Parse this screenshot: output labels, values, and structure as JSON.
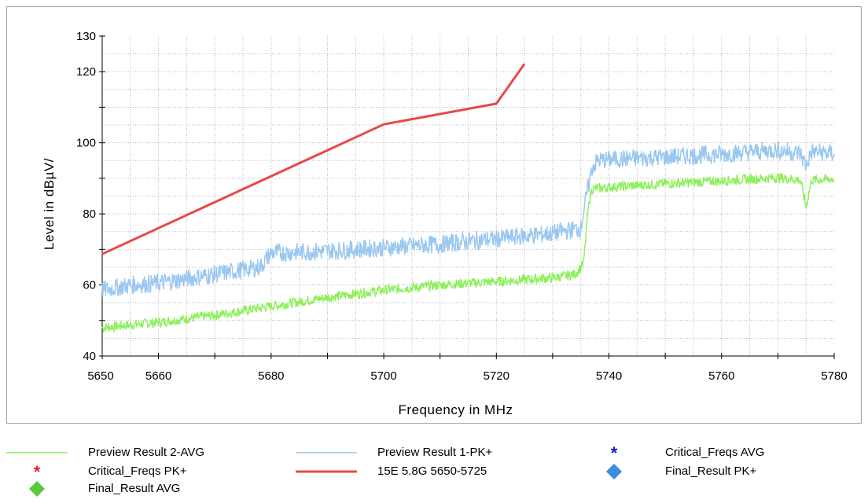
{
  "chart_data": {
    "type": "line",
    "xlabel": "Frequency in MHz",
    "ylabel": "Level in dBµV/",
    "xlim": [
      5650,
      5780
    ],
    "ylim": [
      40,
      130
    ],
    "x_ticks": [
      "5650",
      "5660",
      "5680",
      "5700",
      "5720",
      "5740",
      "5760",
      "5780"
    ],
    "y_ticks": [
      "40",
      "60",
      "80",
      "100",
      "120",
      "130"
    ],
    "grid": true,
    "series": [
      {
        "name": "Preview Result 2-AVG",
        "color": "#8cf05a",
        "x": [
          5650,
          5660,
          5670,
          5680,
          5690,
          5700,
          5710,
          5720,
          5730,
          5734,
          5735.5,
          5736,
          5736.5,
          5737,
          5740,
          5750,
          5760,
          5770,
          5774,
          5775,
          5776,
          5780
        ],
        "values": [
          48,
          49.5,
          51.5,
          54,
          56.5,
          58.5,
          60,
          61,
          62,
          63,
          66,
          76,
          84,
          87,
          87.5,
          88.5,
          89.3,
          90.2,
          89.5,
          82,
          89.5,
          89.8
        ]
      },
      {
        "name": "Preview Result 1-PK+",
        "color": "#99c7f0",
        "x": [
          5650,
          5655,
          5660,
          5670,
          5678,
          5680,
          5690,
          5700,
          5710,
          5720,
          5730,
          5735,
          5736,
          5737,
          5738,
          5740,
          5750,
          5760,
          5770,
          5774,
          5775,
          5776,
          5780
        ],
        "values": [
          58.5,
          60,
          60.5,
          63,
          65,
          69,
          69.5,
          70.5,
          71.5,
          73,
          74.5,
          76,
          85,
          93,
          95,
          95.3,
          96,
          96.8,
          98,
          97,
          93.5,
          97.5,
          97
        ]
      },
      {
        "name": "15E 5.8G 5650-5725",
        "color": "#e84848",
        "x": [
          5650,
          5700,
          5720,
          5725
        ],
        "values": [
          68.7,
          105.2,
          111,
          122.2
        ]
      }
    ],
    "markers": [
      {
        "name": "Critical_Freqs AVG",
        "color": "#1414c8",
        "symbol": "asterisk"
      },
      {
        "name": "Critical_Freqs PK+",
        "color": "#e82020",
        "symbol": "asterisk"
      },
      {
        "name": "Final_Result PK+",
        "color": "#3c8ce0",
        "symbol": "diamond"
      },
      {
        "name": "Final_Result AVG",
        "color": "#5cc83c",
        "symbol": "diamond"
      }
    ]
  },
  "legend": {
    "entries": [
      {
        "label": "Preview Result 2-AVG",
        "kind": "line",
        "color": "#8cf05a"
      },
      {
        "label": "Preview Result 1-PK+",
        "kind": "line",
        "color": "#99c7f0"
      },
      {
        "label": "Critical_Freqs AVG",
        "kind": "asterisk",
        "color": "#1414c8"
      },
      {
        "label": "Critical_Freqs PK+",
        "kind": "asterisk",
        "color": "#e82020"
      },
      {
        "label": "15E 5.8G 5650-5725",
        "kind": "line",
        "color": "#e84848"
      },
      {
        "label": "Final_Result PK+",
        "kind": "diamond",
        "color": "#3c8ce0"
      },
      {
        "label": "Final_Result AVG",
        "kind": "diamond",
        "color": "#5cc83c"
      }
    ]
  }
}
